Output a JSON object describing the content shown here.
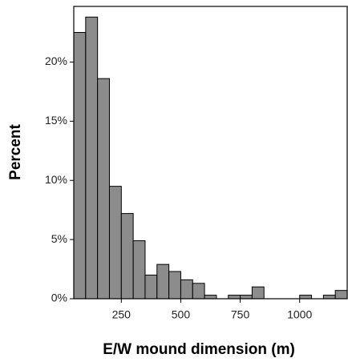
{
  "chart_data": {
    "type": "histogram",
    "x_label": "E/W mound dimension (m)",
    "y_label": "Percent",
    "bins": [
      50,
      100,
      150,
      200,
      250,
      300,
      350,
      400,
      450,
      500,
      550,
      600,
      650,
      700,
      750,
      800,
      850,
      900,
      950,
      1000,
      1050,
      1100,
      1150,
      1200
    ],
    "values": [
      22.5,
      23.8,
      18.6,
      9.5,
      7.2,
      4.9,
      2.0,
      2.9,
      2.3,
      1.6,
      1.3,
      0.3,
      0,
      0.3,
      0.3,
      1.0,
      0,
      0,
      0,
      0.3,
      0,
      0.3,
      0.7
    ],
    "color": "#8c8c8c",
    "xlim": [
      50,
      1200
    ],
    "xticks": [
      250,
      500,
      750,
      1000
    ],
    "ylim": [
      0,
      24.7
    ],
    "yticks": [
      {
        "value": 0,
        "label": "0%"
      },
      {
        "value": 5,
        "label": "5%"
      },
      {
        "value": 10,
        "label": "10%"
      },
      {
        "value": 15,
        "label": "15%"
      },
      {
        "value": 20,
        "label": "20%"
      }
    ],
    "grid": false
  }
}
